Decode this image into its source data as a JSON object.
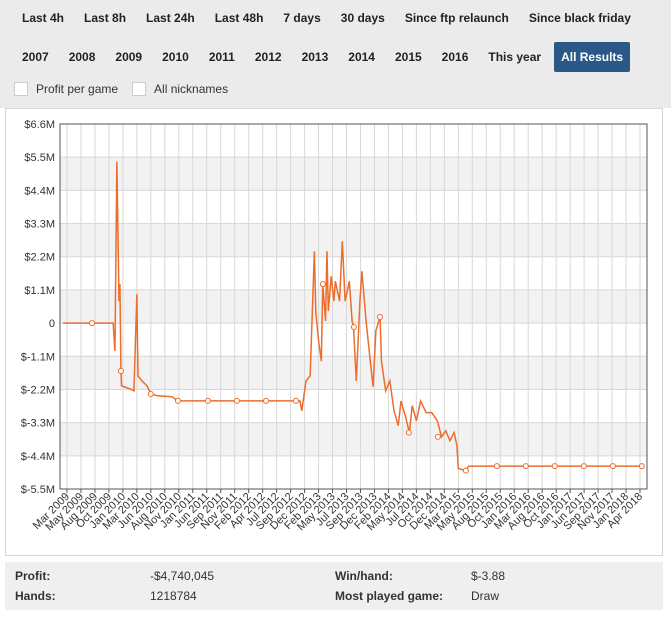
{
  "time_filters": [
    {
      "label": "Last 4h"
    },
    {
      "label": "Last 8h"
    },
    {
      "label": "Last 24h"
    },
    {
      "label": "Last 48h"
    },
    {
      "label": "7 days"
    },
    {
      "label": "30 days"
    },
    {
      "label": "Since ftp relaunch"
    },
    {
      "label": "Since black friday"
    }
  ],
  "year_filters": [
    {
      "label": "2007"
    },
    {
      "label": "2008"
    },
    {
      "label": "2009"
    },
    {
      "label": "2010"
    },
    {
      "label": "2011"
    },
    {
      "label": "2012"
    },
    {
      "label": "2013"
    },
    {
      "label": "2014"
    },
    {
      "label": "2015"
    },
    {
      "label": "2016"
    },
    {
      "label": "This year"
    },
    {
      "label": "All Results",
      "active": true
    }
  ],
  "options": [
    {
      "label": "Profit per game",
      "checked": false
    },
    {
      "label": "All nicknames",
      "checked": false
    }
  ],
  "chart_data": {
    "type": "line",
    "grid": true,
    "series": [
      {
        "color": "#ec6d2c",
        "x": [
          -0.28,
          1.79,
          3.3,
          3.43,
          3.57,
          3.72,
          3.79,
          3.86,
          3.9,
          4.5,
          4.79,
          5.0,
          5.08,
          5.37,
          5.72,
          6.0,
          6.5,
          7.5,
          7.94,
          16.67,
          16.8,
          17.1,
          17.4,
          17.7,
          17.8,
          18.0,
          18.2,
          18.3,
          18.5,
          18.6,
          18.7,
          18.9,
          19.1,
          19.2,
          19.5,
          19.7,
          19.9,
          20.2,
          20.4,
          20.5,
          20.7,
          20.96,
          21.1,
          21.4,
          21.7,
          21.9,
          22.1,
          22.4,
          22.5,
          22.8,
          23.1,
          23.4,
          23.7,
          23.9,
          24.2,
          24.5,
          24.7,
          25.0,
          25.3,
          25.7,
          26.1,
          26.5,
          26.8,
          27.1,
          27.4,
          27.7,
          27.9,
          28.0,
          28.5,
          28.76,
          41.3
        ],
        "values": [
          0,
          0,
          0,
          -925000,
          5350000,
          730000,
          1290000,
          -1590000,
          -2080000,
          -2180000,
          -2250000,
          960000,
          -1750000,
          -1920000,
          -2080000,
          -2350000,
          -2410000,
          -2440000,
          -2580000,
          -2580000,
          -2910000,
          -1920000,
          -1750000,
          2380000,
          400000,
          -590000,
          -1260000,
          1290000,
          70000,
          2380000,
          400000,
          1550000,
          730000,
          1390000,
          730000,
          2710000,
          730000,
          1390000,
          70000,
          -130000,
          -1920000,
          730000,
          1720000,
          70000,
          -1260000,
          -2110000,
          -260000,
          200000,
          -1260000,
          -2250000,
          -1920000,
          -2910000,
          -3400000,
          -2580000,
          -3070000,
          -3630000,
          -2740000,
          -3240000,
          -2580000,
          -2970000,
          -2970000,
          -3240000,
          -3770000,
          -3570000,
          -3900000,
          -3630000,
          -4060000,
          -4820000,
          -4890000,
          -4740000,
          -4740000
        ]
      }
    ],
    "markers": {
      "x": [
        1.79,
        3.86,
        6.0,
        7.94,
        10.09,
        12.16,
        14.24,
        16.38,
        18.31,
        20.53,
        22.39,
        24.46,
        26.54,
        28.54,
        30.76,
        32.83,
        34.9,
        36.98,
        39.06,
        41.13
      ],
      "values": [
        0,
        -1590000,
        -2350000,
        -2580000,
        -2580000,
        -2580000,
        -2580000,
        -2580000,
        1290000,
        -130000,
        200000,
        -3630000,
        -3770000,
        -4890000,
        -4740000,
        -4740000,
        -4740000,
        -4740000,
        -4740000,
        -4740000
      ]
    },
    "xlim": [
      -0.5,
      41.5
    ],
    "xticks": [
      {
        "value": 0,
        "label": "Mar 2009"
      },
      {
        "value": 1,
        "label": "May 2009"
      },
      {
        "value": 2,
        "label": "Aug 2009"
      },
      {
        "value": 3,
        "label": "Oct 2009"
      },
      {
        "value": 4,
        "label": "Jan 2010"
      },
      {
        "value": 5,
        "label": "Mar 2010"
      },
      {
        "value": 6,
        "label": "Jun 2010"
      },
      {
        "value": 7,
        "label": "Aug 2010"
      },
      {
        "value": 8,
        "label": "Nov 2010"
      },
      {
        "value": 9,
        "label": "Jan 2011"
      },
      {
        "value": 10,
        "label": "Jun 2011"
      },
      {
        "value": 11,
        "label": "Sep 2011"
      },
      {
        "value": 12,
        "label": "Nov 2011"
      },
      {
        "value": 13,
        "label": "Feb 2012"
      },
      {
        "value": 14,
        "label": "Apr 2012"
      },
      {
        "value": 15,
        "label": "Jul 2012"
      },
      {
        "value": 16,
        "label": "Sep 2012"
      },
      {
        "value": 17,
        "label": "Dec 2012"
      },
      {
        "value": 18,
        "label": "Feb 2013"
      },
      {
        "value": 19,
        "label": "May 2013"
      },
      {
        "value": 20,
        "label": "Jul 2013"
      },
      {
        "value": 21,
        "label": "Sep 2013"
      },
      {
        "value": 22,
        "label": "Dec 2013"
      },
      {
        "value": 23,
        "label": "Feb 2014"
      },
      {
        "value": 24,
        "label": "May 2014"
      },
      {
        "value": 25,
        "label": "Jul 2014"
      },
      {
        "value": 26,
        "label": "Oct 2014"
      },
      {
        "value": 27,
        "label": "Dec 2014"
      },
      {
        "value": 28,
        "label": "Mar 2015"
      },
      {
        "value": 29,
        "label": "May 2015"
      },
      {
        "value": 30,
        "label": "Aug 2015"
      },
      {
        "value": 31,
        "label": "Oct 2015"
      },
      {
        "value": 32,
        "label": "Jan 2016"
      },
      {
        "value": 33,
        "label": "Mar 2016"
      },
      {
        "value": 34,
        "label": "Aug 2016"
      },
      {
        "value": 35,
        "label": "Oct 2016"
      },
      {
        "value": 36,
        "label": "Jan 2017"
      },
      {
        "value": 37,
        "label": "Jun 2017"
      },
      {
        "value": 38,
        "label": "Sep 2017"
      },
      {
        "value": 39,
        "label": "Nov 2017"
      },
      {
        "value": 40,
        "label": "Jan 2018"
      },
      {
        "value": 41,
        "label": "Apr 2018"
      }
    ],
    "ylim": [
      -5500000,
      6600000
    ],
    "yticks": [
      {
        "value": 6600000,
        "label": "$6.6M"
      },
      {
        "value": 5500000,
        "label": "$5.5M"
      },
      {
        "value": 4400000,
        "label": "$4.4M"
      },
      {
        "value": 3300000,
        "label": "$3.3M"
      },
      {
        "value": 2200000,
        "label": "$2.2M"
      },
      {
        "value": 1100000,
        "label": "$1.1M"
      },
      0,
      {
        "value": -1100000,
        "label": "$-1.1M"
      },
      {
        "value": -2200000,
        "label": "$-2.2M"
      },
      {
        "value": -3300000,
        "label": "$-3.3M"
      },
      {
        "value": -4400000,
        "label": "$-4.4M"
      },
      {
        "value": -5500000,
        "label": "$-5.5M"
      }
    ]
  },
  "stats": [
    {
      "label": "Profit:",
      "value": "-$4,740,045"
    },
    {
      "label": "Win/hand:",
      "value": "$-3.88"
    },
    {
      "label": "Hands:",
      "value": "1218784"
    },
    {
      "label": "Most played game:",
      "value": "Draw"
    }
  ]
}
